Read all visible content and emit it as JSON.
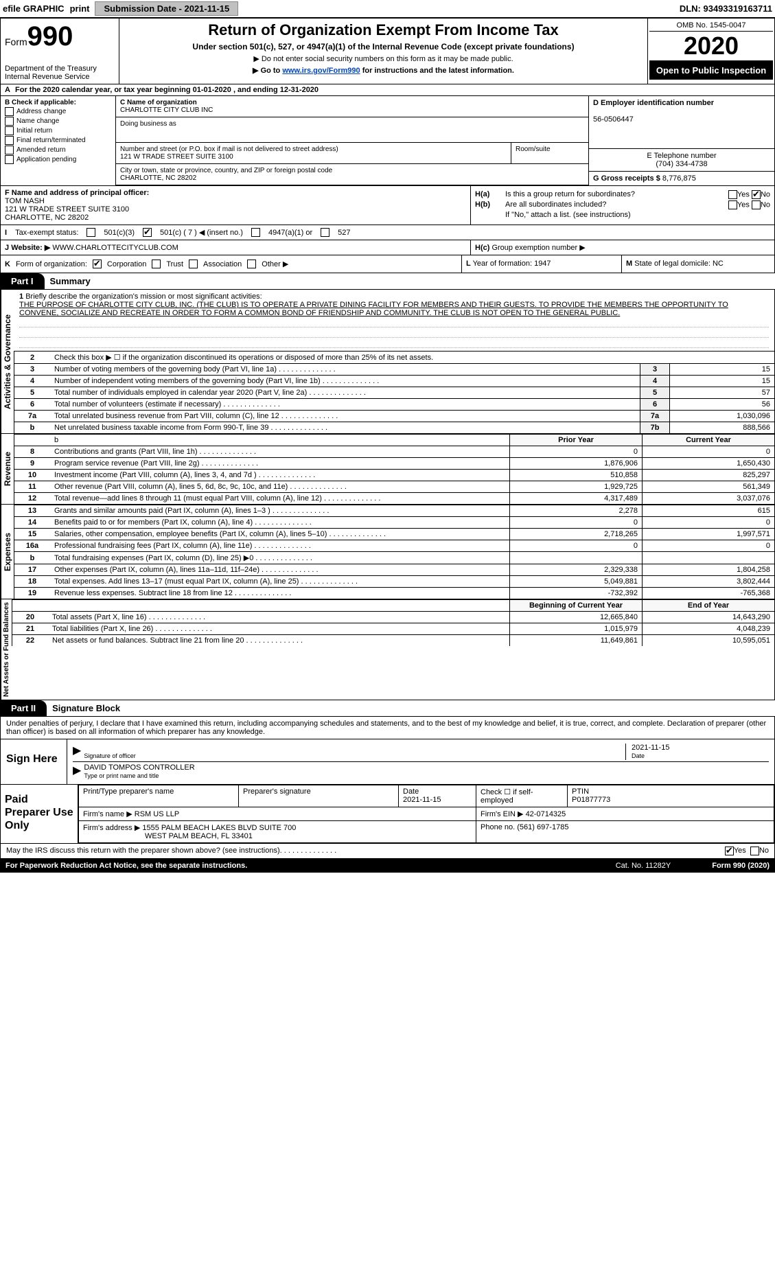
{
  "topbar": {
    "efile": "efile GRAPHIC",
    "print": "print",
    "submission": "Submission Date - 2021-11-15",
    "dln": "DLN: 93493319163711"
  },
  "header": {
    "form_prefix": "Form",
    "form_number": "990",
    "dept1": "Department of the Treasury",
    "dept2": "Internal Revenue Service",
    "title": "Return of Organization Exempt From Income Tax",
    "sub1": "Under section 501(c), 527, or 4947(a)(1) of the Internal Revenue Code (except private foundations)",
    "sub2": "▶ Do not enter social security numbers on this form as it may be made public.",
    "sub3_prefix": "▶ Go to ",
    "sub3_link": "www.irs.gov/Form990",
    "sub3_suffix": " for instructions and the latest information.",
    "omb": "OMB No. 1545-0047",
    "year": "2020",
    "open": "Open to Public Inspection"
  },
  "row_a": {
    "label": "A",
    "text": "For the 2020 calendar year, or tax year beginning 01-01-2020    , and ending 12-31-2020"
  },
  "section_b": {
    "title": "B Check if applicable:",
    "items": [
      "Address change",
      "Name change",
      "Initial return",
      "Final return/terminated",
      "Amended return",
      "Application pending"
    ]
  },
  "section_c": {
    "name_label": "C Name of organization",
    "name": "CHARLOTTE CITY CLUB INC",
    "dba_label": "Doing business as",
    "addr_label": "Number and street (or P.O. box if mail is not delivered to street address)",
    "addr": "121 W TRADE STREET SUITE 3100",
    "room_label": "Room/suite",
    "city_label": "City or town, state or province, country, and ZIP or foreign postal code",
    "city": "CHARLOTTE, NC  28202"
  },
  "section_d": {
    "label": "D Employer identification number",
    "value": "56-0506447"
  },
  "section_e": {
    "label": "E Telephone number",
    "value": "(704) 334-4738"
  },
  "section_g": {
    "label": "G Gross receipts $",
    "value": "8,776,875"
  },
  "section_f": {
    "label": "F  Name and address of principal officer:",
    "name": "TOM NASH",
    "addr1": "121 W TRADE STREET SUITE 3100",
    "addr2": "CHARLOTTE, NC  28202"
  },
  "section_h": {
    "ha_label": "H(a)",
    "ha_text": "Is this a group return for subordinates?",
    "hb_label": "H(b)",
    "hb_text": "Are all subordinates included?",
    "hb_note": "If \"No,\" attach a list. (see instructions)",
    "hc_label": "H(c)",
    "hc_text": "Group exemption number ▶",
    "yes": "Yes",
    "no": "No"
  },
  "tax_status": {
    "label_i": "I",
    "label": "Tax-exempt status:",
    "opt1": "501(c)(3)",
    "opt2": "501(c) ( 7 ) ◀ (insert no.)",
    "opt3": "4947(a)(1) or",
    "opt4": "527"
  },
  "website": {
    "label_j": "J",
    "label": "Website: ▶",
    "value": "WWW.CHARLOTTECITYCLUB.COM"
  },
  "row_k": {
    "label_k": "K",
    "label": "Form of organization:",
    "opts": [
      "Corporation",
      "Trust",
      "Association",
      "Other ▶"
    ]
  },
  "row_l": {
    "label_l": "L",
    "text": "Year of formation: 1947"
  },
  "row_m": {
    "label_m": "M",
    "text": "State of legal domicile: NC"
  },
  "part1": {
    "tab": "Part I",
    "title": "Summary",
    "line1_label": "1",
    "line1_text": "Briefly describe the organization's mission or most significant activities:",
    "mission": "THE PURPOSE OF CHARLOTTE CITY CLUB, INC. (THE CLUB) IS TO OPERATE A PRIVATE DINING FACILITY FOR MEMBERS AND THEIR GUESTS. TO PROVIDE THE MEMBERS THE OPPORTUNITY TO CONVENE, SOCIALIZE AND RECREATE IN ORDER TO FORM A COMMON BOND OF FRIENDSHIP AND COMMUNITY. THE CLUB IS NOT OPEN TO THE GENERAL PUBLIC.",
    "vert_gov": "Activities & Governance",
    "vert_rev": "Revenue",
    "vert_exp": "Expenses",
    "vert_net": "Net Assets or Fund Balances",
    "line2": "Check this box ▶ ☐  if the organization discontinued its operations or disposed of more than 25% of its net assets.",
    "prior_header": "Prior Year",
    "current_header": "Current Year",
    "beg_header": "Beginning of Current Year",
    "end_header": "End of Year",
    "rows_gov": [
      {
        "n": "3",
        "t": "Number of voting members of the governing body (Part VI, line 1a)",
        "r": "3",
        "v": "15"
      },
      {
        "n": "4",
        "t": "Number of independent voting members of the governing body (Part VI, line 1b)",
        "r": "4",
        "v": "15"
      },
      {
        "n": "5",
        "t": "Total number of individuals employed in calendar year 2020 (Part V, line 2a)",
        "r": "5",
        "v": "57"
      },
      {
        "n": "6",
        "t": "Total number of volunteers (estimate if necessary)",
        "r": "6",
        "v": "56"
      },
      {
        "n": "7a",
        "t": "Total unrelated business revenue from Part VIII, column (C), line 12",
        "r": "7a",
        "v": "1,030,096"
      },
      {
        "n": "b",
        "t": "Net unrelated business taxable income from Form 990-T, line 39",
        "r": "7b",
        "v": "888,566"
      }
    ],
    "rows_rev": [
      {
        "n": "8",
        "t": "Contributions and grants (Part VIII, line 1h)",
        "p": "0",
        "c": "0"
      },
      {
        "n": "9",
        "t": "Program service revenue (Part VIII, line 2g)",
        "p": "1,876,906",
        "c": "1,650,430"
      },
      {
        "n": "10",
        "t": "Investment income (Part VIII, column (A), lines 3, 4, and 7d )",
        "p": "510,858",
        "c": "825,297"
      },
      {
        "n": "11",
        "t": "Other revenue (Part VIII, column (A), lines 5, 6d, 8c, 9c, 10c, and 11e)",
        "p": "1,929,725",
        "c": "561,349"
      },
      {
        "n": "12",
        "t": "Total revenue—add lines 8 through 11 (must equal Part VIII, column (A), line 12)",
        "p": "4,317,489",
        "c": "3,037,076"
      }
    ],
    "rows_exp": [
      {
        "n": "13",
        "t": "Grants and similar amounts paid (Part IX, column (A), lines 1–3 )",
        "p": "2,278",
        "c": "615"
      },
      {
        "n": "14",
        "t": "Benefits paid to or for members (Part IX, column (A), line 4)",
        "p": "0",
        "c": "0"
      },
      {
        "n": "15",
        "t": "Salaries, other compensation, employee benefits (Part IX, column (A), lines 5–10)",
        "p": "2,718,265",
        "c": "1,997,571"
      },
      {
        "n": "16a",
        "t": "Professional fundraising fees (Part IX, column (A), line 11e)",
        "p": "0",
        "c": "0"
      },
      {
        "n": "b",
        "t": "Total fundraising expenses (Part IX, column (D), line 25) ▶0",
        "p": "",
        "c": ""
      },
      {
        "n": "17",
        "t": "Other expenses (Part IX, column (A), lines 11a–11d, 11f–24e)",
        "p": "2,329,338",
        "c": "1,804,258"
      },
      {
        "n": "18",
        "t": "Total expenses. Add lines 13–17 (must equal Part IX, column (A), line 25)",
        "p": "5,049,881",
        "c": "3,802,444"
      },
      {
        "n": "19",
        "t": "Revenue less expenses. Subtract line 18 from line 12",
        "p": "-732,392",
        "c": "-765,368"
      }
    ],
    "rows_net": [
      {
        "n": "20",
        "t": "Total assets (Part X, line 16)",
        "p": "12,665,840",
        "c": "14,643,290"
      },
      {
        "n": "21",
        "t": "Total liabilities (Part X, line 26)",
        "p": "1,015,979",
        "c": "4,048,239"
      },
      {
        "n": "22",
        "t": "Net assets or fund balances. Subtract line 21 from line 20",
        "p": "11,649,861",
        "c": "10,595,051"
      }
    ]
  },
  "part2": {
    "tab": "Part II",
    "title": "Signature Block",
    "decl": "Under penalties of perjury, I declare that I have examined this return, including accompanying schedules and statements, and to the best of my knowledge and belief, it is true, correct, and complete. Declaration of preparer (other than officer) is based on all information of which preparer has any knowledge."
  },
  "sign": {
    "label": "Sign Here",
    "sig_officer": "Signature of officer",
    "sig_date": "2021-11-15",
    "date_label": "Date",
    "name": "DAVID TOMPOS  CONTROLLER",
    "name_label": "Type or print name and title"
  },
  "prep": {
    "label": "Paid Preparer Use Only",
    "print_name_label": "Print/Type preparer's name",
    "sig_label": "Preparer's signature",
    "date_label": "Date",
    "date": "2021-11-15",
    "self_emp": "Check ☐ if self-employed",
    "ptin_label": "PTIN",
    "ptin": "P01877773",
    "firm_name_label": "Firm's name    ▶",
    "firm_name": "RSM US LLP",
    "firm_ein_label": "Firm's EIN ▶",
    "firm_ein": "42-0714325",
    "firm_addr_label": "Firm's address ▶",
    "firm_addr1": "1555 PALM BEACH LAKES BLVD SUITE 700",
    "firm_addr2": "WEST PALM BEACH, FL  33401",
    "phone_label": "Phone no.",
    "phone": "(561) 697-1785"
  },
  "discuss": {
    "text": "May the IRS discuss this return with the preparer shown above? (see instructions)",
    "yes": "Yes",
    "no": "No"
  },
  "footer": {
    "paperwork": "For Paperwork Reduction Act Notice, see the separate instructions.",
    "cat": "Cat. No. 11282Y",
    "form": "Form 990 (2020)"
  },
  "colors": {
    "black": "#000000",
    "link": "#0044cc",
    "grey_btn": "#c0c0c0"
  }
}
